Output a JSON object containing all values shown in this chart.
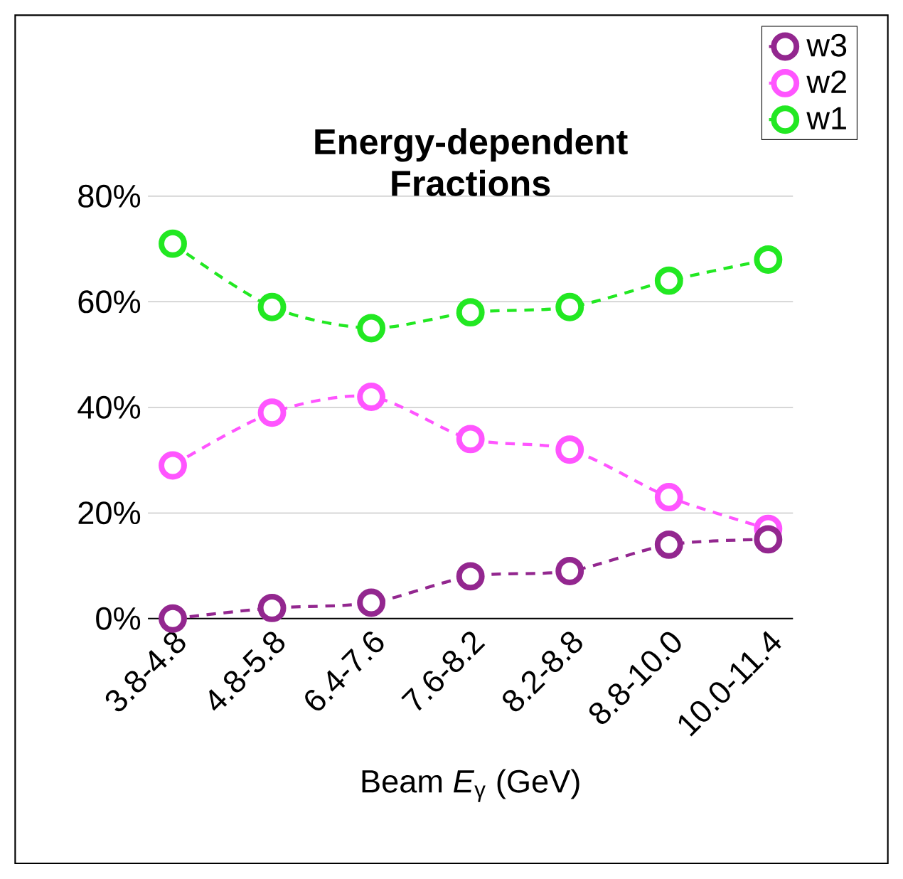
{
  "chart_data": {
    "type": "line",
    "title": "Energy-dependent Fractions",
    "xlabel": "Beam *E*$_{γ}$  (GeV)",
    "categories": [
      "3.8-4.8",
      "4.8-5.8",
      "6.4-7.6",
      "7.6-8.2",
      "8.2-8.8",
      "8.8-10.0",
      "10.0-11.4"
    ],
    "series": [
      {
        "name": "w3",
        "color": "#93278f",
        "values": [
          0,
          2,
          3,
          8,
          9,
          14,
          15
        ]
      },
      {
        "name": "w2",
        "color": "#ff55ff",
        "values": [
          29,
          39,
          42,
          34,
          32,
          23,
          17
        ]
      },
      {
        "name": "w1",
        "color": "#22e822",
        "values": [
          71,
          59,
          55,
          58,
          59,
          64,
          68
        ]
      }
    ],
    "ylim": [
      0,
      80
    ],
    "yticks": [
      {
        "value": 0,
        "label": "0%"
      },
      {
        "value": 20,
        "label": "20%"
      },
      {
        "value": 40,
        "label": "40%"
      },
      {
        "value": 60,
        "label": "60%"
      },
      {
        "value": 80,
        "label": "80%"
      }
    ],
    "grid": "y",
    "legend": "top right",
    "marker": "circle",
    "line_style": "dashed"
  }
}
